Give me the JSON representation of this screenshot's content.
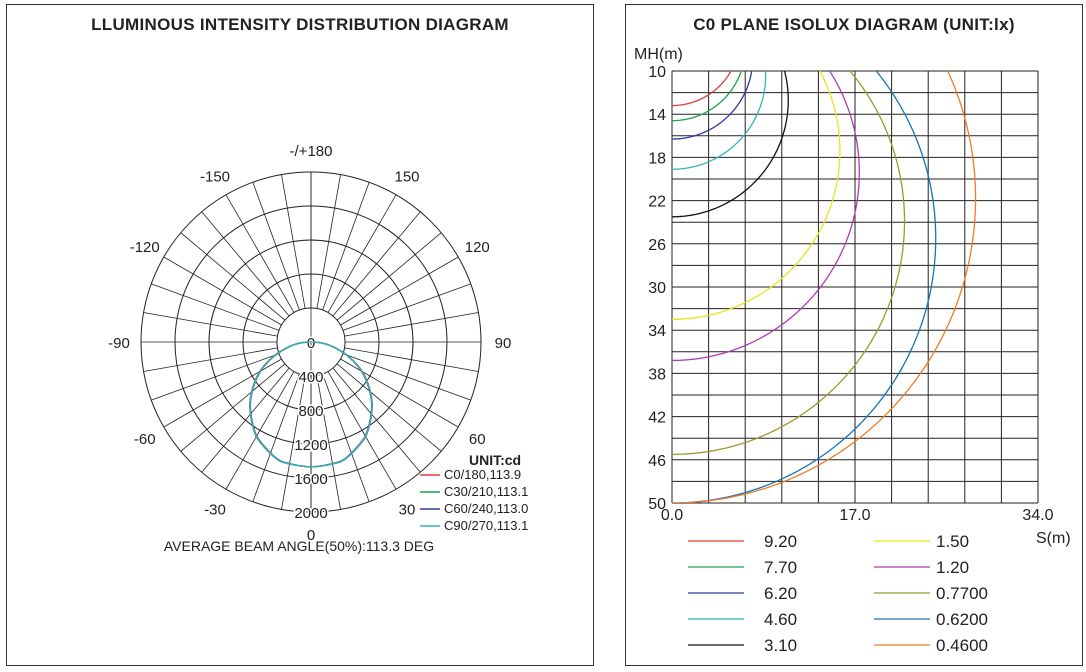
{
  "chart_data": [
    {
      "type": "polar",
      "title": "LLUMINOUS INTENSITY DISTRIBUTION DIAGRAM",
      "unit_label": "UNIT:cd",
      "angle_labels": [
        {
          "deg": 180,
          "text": "-/+180"
        },
        {
          "deg": 150,
          "text": "150"
        },
        {
          "deg": -150,
          "text": "-150"
        },
        {
          "deg": 120,
          "text": "120"
        },
        {
          "deg": -120,
          "text": "-120"
        },
        {
          "deg": 90,
          "text": "90"
        },
        {
          "deg": -90,
          "text": "-90"
        },
        {
          "deg": 60,
          "text": "60"
        },
        {
          "deg": -60,
          "text": "-60"
        },
        {
          "deg": 30,
          "text": "30"
        },
        {
          "deg": -30,
          "text": "-30"
        },
        {
          "deg": 0,
          "text": "0"
        }
      ],
      "radial_labels": [
        "0",
        "400",
        "800",
        "1200",
        "1600",
        "2000"
      ],
      "radial_ticks": [
        0,
        400,
        800,
        1200,
        1600,
        2000
      ],
      "rmax": 2000,
      "series": [
        {
          "name": "C0/180,113.9",
          "color": "#e23b3b",
          "samples": [
            [
              0,
              1470
            ],
            [
              15,
              1450
            ],
            [
              30,
              1290
            ],
            [
              45,
              1020
            ],
            [
              60,
              700
            ],
            [
              75,
              330
            ],
            [
              90,
              20
            ]
          ]
        },
        {
          "name": "C30/210,113.1",
          "color": "#1aa34a",
          "samples": [
            [
              0,
              1470
            ],
            [
              15,
              1450
            ],
            [
              30,
              1285
            ],
            [
              45,
              1015
            ],
            [
              60,
              690
            ],
            [
              75,
              320
            ],
            [
              90,
              20
            ]
          ]
        },
        {
          "name": "C60/240,113.0",
          "color": "#2e3a9e",
          "samples": [
            [
              0,
              1470
            ],
            [
              15,
              1445
            ],
            [
              30,
              1280
            ],
            [
              45,
              1010
            ],
            [
              60,
              685
            ],
            [
              75,
              315
            ],
            [
              90,
              20
            ]
          ]
        },
        {
          "name": "C90/270,113.1",
          "color": "#33b5b5",
          "samples": [
            [
              0,
              1470
            ],
            [
              15,
              1450
            ],
            [
              30,
              1285
            ],
            [
              45,
              1015
            ],
            [
              60,
              690
            ],
            [
              75,
              320
            ],
            [
              90,
              20
            ]
          ]
        }
      ],
      "annotation": "AVERAGE BEAM ANGLE(50%):113.3 DEG"
    },
    {
      "type": "line",
      "title": "C0 PLANE ISOLUX DIAGRAM (UNIT:lx)",
      "ylabel": "MH(m)",
      "xlabel": "S(m)",
      "x_ticks": [
        "0.0",
        "17.0",
        "34.0"
      ],
      "x_tick_values": [
        0,
        17,
        34
      ],
      "y_ticks": [
        "10",
        "14",
        "18",
        "22",
        "26",
        "30",
        "34",
        "38",
        "42",
        "46",
        "50"
      ],
      "y_tick_values": [
        10,
        14,
        18,
        22,
        26,
        30,
        34,
        38,
        42,
        46,
        50
      ],
      "xlim": [
        0,
        34
      ],
      "ylim": [
        10,
        50
      ],
      "series": [
        {
          "name": "9.20",
          "color": "#e23b3b",
          "arc": {
            "radius": 6.3,
            "y_at_s0": 13.2
          }
        },
        {
          "name": "7.70",
          "color": "#1aa34a",
          "arc": {
            "radius": 6.8,
            "y_at_s0": 14.6
          }
        },
        {
          "name": "6.20",
          "color": "#2e3a9e",
          "arc": {
            "radius": 7.5,
            "y_at_s0": 16.3
          }
        },
        {
          "name": "4.60",
          "color": "#33b5b5",
          "arc": {
            "radius": 8.7,
            "y_at_s0": 19.1
          }
        },
        {
          "name": "3.10",
          "color": "#111111",
          "arc": {
            "radius": 10.8,
            "y_at_s0": 23.5
          }
        },
        {
          "name": "1.50",
          "color": "#e6e61a",
          "arc": {
            "radius": 15.6,
            "y_at_s0": 33.0
          }
        },
        {
          "name": "1.20",
          "color": "#b23bb2",
          "arc": {
            "radius": 17.4,
            "y_at_s0": 36.8
          }
        },
        {
          "name": "0.7700",
          "color": "#9c9a2e",
          "arc": {
            "radius": 21.6,
            "y_at_s0": 45.5
          }
        },
        {
          "name": "0.6200",
          "color": "#1a73b5",
          "arc": {
            "radius": 24.5,
            "y_at_s0": 50.0
          }
        },
        {
          "name": "0.4600",
          "color": "#f07a26",
          "arc": {
            "radius": 28.2,
            "y_at_s0": 50.0
          }
        }
      ]
    }
  ]
}
